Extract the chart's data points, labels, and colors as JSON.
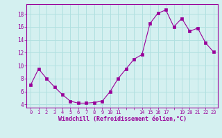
{
  "x": [
    0,
    1,
    2,
    3,
    4,
    5,
    6,
    7,
    8,
    9,
    10,
    11,
    12,
    13,
    14,
    15,
    16,
    17,
    18,
    19,
    20,
    21,
    22,
    23
  ],
  "y": [
    7.0,
    9.5,
    8.0,
    6.7,
    5.5,
    4.5,
    4.2,
    4.2,
    4.3,
    4.5,
    6.0,
    8.0,
    9.5,
    11.0,
    11.7,
    16.5,
    18.1,
    18.6,
    16.0,
    17.3,
    15.3,
    15.8,
    13.5,
    12.1
  ],
  "xlim": [
    -0.5,
    23.5
  ],
  "ylim": [
    3.5,
    19.5
  ],
  "all_xticks": [
    0,
    1,
    2,
    3,
    4,
    5,
    6,
    7,
    8,
    9,
    10,
    11,
    12,
    13,
    14,
    15,
    16,
    17,
    18,
    19,
    20,
    21,
    22,
    23
  ],
  "labeled_xticks": [
    0,
    1,
    2,
    3,
    4,
    5,
    6,
    7,
    8,
    9,
    10,
    11,
    14,
    15,
    16,
    17,
    19,
    20,
    21,
    22,
    23
  ],
  "yticks": [
    4,
    6,
    8,
    10,
    12,
    14,
    16,
    18
  ],
  "xlabel": "Windchill (Refroidissement éolien,°C)",
  "line_color": "#990099",
  "marker_color": "#990099",
  "bg_color": "#d4f0f0",
  "grid_color": "#b0e0e0",
  "tick_color": "#990099",
  "label_color": "#990099"
}
